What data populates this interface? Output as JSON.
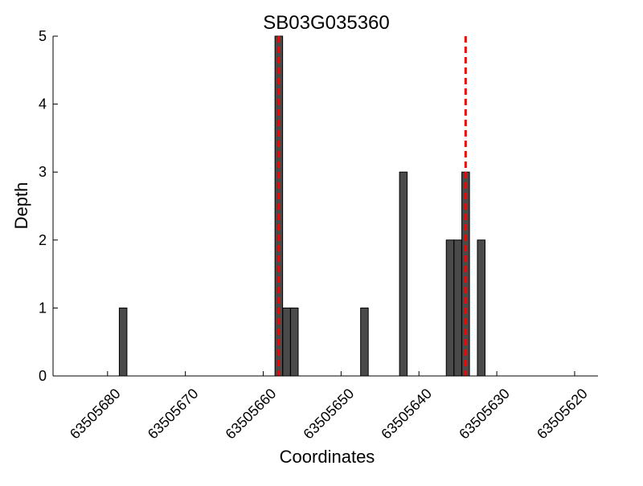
{
  "chart_data": {
    "type": "bar",
    "title": "SB03G035360",
    "xlabel": "Coordinates",
    "ylabel": "Depth",
    "x_reversed": true,
    "xlim": [
      63505687,
      63505617
    ],
    "ylim": [
      0,
      5
    ],
    "xticks": [
      63505680,
      63505670,
      63505660,
      63505650,
      63505640,
      63505630,
      63505620
    ],
    "xtick_labels": [
      "63505680",
      "63505670",
      "63505660",
      "63505650",
      "63505640",
      "63505630",
      "63505620"
    ],
    "yticks": [
      0,
      1,
      2,
      3,
      4,
      5
    ],
    "ytick_labels": [
      "0",
      "1",
      "2",
      "3",
      "4",
      "5"
    ],
    "grid": false,
    "bar_color": "#4a4a4a",
    "bar_edge_color": "#000000",
    "bars": [
      {
        "x": 63505678,
        "value": 1
      },
      {
        "x": 63505658,
        "value": 5
      },
      {
        "x": 63505657,
        "value": 1
      },
      {
        "x": 63505656,
        "value": 1
      },
      {
        "x": 63505647,
        "value": 1
      },
      {
        "x": 63505642,
        "value": 3
      },
      {
        "x": 63505636,
        "value": 2
      },
      {
        "x": 63505635,
        "value": 2
      },
      {
        "x": 63505634,
        "value": 3
      },
      {
        "x": 63505632,
        "value": 2
      }
    ],
    "vertical_markers": [
      {
        "x": 63505658,
        "color": "#ff0000",
        "style": "dashed"
      },
      {
        "x": 63505634,
        "color": "#ff0000",
        "style": "dashed"
      }
    ]
  }
}
